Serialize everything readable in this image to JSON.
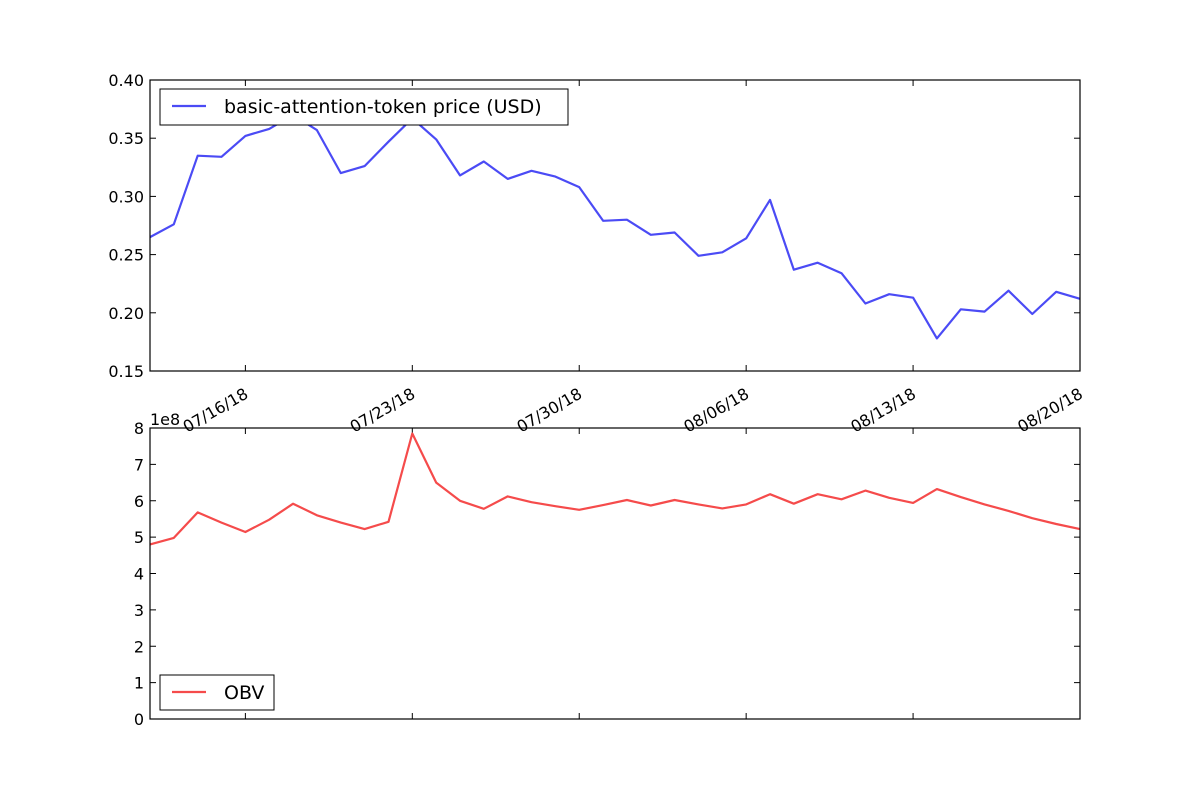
{
  "chart_data": [
    {
      "type": "line",
      "x": [
        "07/12/18",
        "07/13/18",
        "07/14/18",
        "07/15/18",
        "07/16/18",
        "07/17/18",
        "07/18/18",
        "07/19/18",
        "07/20/18",
        "07/21/18",
        "07/22/18",
        "07/23/18",
        "07/24/18",
        "07/25/18",
        "07/26/18",
        "07/27/18",
        "07/28/18",
        "07/29/18",
        "07/30/18",
        "07/31/18",
        "08/01/18",
        "08/02/18",
        "08/03/18",
        "08/04/18",
        "08/05/18",
        "08/06/18",
        "08/07/18",
        "08/08/18",
        "08/09/18",
        "08/10/18",
        "08/11/18",
        "08/12/18",
        "08/13/18",
        "08/14/18",
        "08/15/18",
        "08/16/18",
        "08/17/18",
        "08/18/18",
        "08/19/18",
        "08/20/18"
      ],
      "xticks": [
        "07/16/18",
        "07/23/18",
        "07/30/18",
        "08/06/18",
        "08/13/18",
        "08/20/18"
      ],
      "series": [
        {
          "name": "basic-attention-token price (USD)",
          "values": [
            0.265,
            0.276,
            0.335,
            0.334,
            0.352,
            0.358,
            0.37,
            0.357,
            0.32,
            0.326,
            0.347,
            0.367,
            0.349,
            0.318,
            0.33,
            0.315,
            0.322,
            0.317,
            0.308,
            0.279,
            0.28,
            0.267,
            0.269,
            0.249,
            0.252,
            0.264,
            0.297,
            0.237,
            0.243,
            0.234,
            0.208,
            0.216,
            0.213,
            0.178,
            0.203,
            0.201,
            0.219,
            0.199,
            0.218,
            0.212
          ]
        }
      ],
      "ylim": [
        0.15,
        0.4
      ],
      "yticks": [
        "0.15",
        "0.20",
        "0.25",
        "0.30",
        "0.35",
        "0.40"
      ],
      "legend": "top-left",
      "grid": false,
      "color": "#4b4bf5"
    },
    {
      "type": "line",
      "x": [
        "07/12/18",
        "07/13/18",
        "07/14/18",
        "07/15/18",
        "07/16/18",
        "07/17/18",
        "07/18/18",
        "07/19/18",
        "07/20/18",
        "07/21/18",
        "07/22/18",
        "07/23/18",
        "07/24/18",
        "07/25/18",
        "07/26/18",
        "07/27/18",
        "07/28/18",
        "07/29/18",
        "07/30/18",
        "07/31/18",
        "08/01/18",
        "08/02/18",
        "08/03/18",
        "08/04/18",
        "08/05/18",
        "08/06/18",
        "08/07/18",
        "08/08/18",
        "08/09/18",
        "08/10/18",
        "08/11/18",
        "08/12/18",
        "08/13/18",
        "08/14/18",
        "08/15/18",
        "08/16/18",
        "08/17/18",
        "08/18/18",
        "08/19/18",
        "08/20/18"
      ],
      "series": [
        {
          "name": "OBV",
          "values": [
            4.8,
            4.98,
            5.68,
            5.4,
            5.14,
            5.48,
            5.92,
            5.6,
            5.4,
            5.22,
            5.42,
            7.85,
            6.5,
            6.0,
            5.78,
            6.12,
            5.96,
            5.85,
            5.75,
            5.88,
            6.02,
            5.87,
            6.02,
            5.9,
            5.79,
            5.9,
            6.18,
            5.92,
            6.18,
            6.04,
            6.28,
            6.08,
            5.94,
            6.32,
            6.1,
            5.9,
            5.72,
            5.52,
            5.36,
            5.22
          ]
        }
      ],
      "ylim": [
        0,
        8
      ],
      "yticks": [
        "0",
        "1",
        "2",
        "3",
        "4",
        "5",
        "6",
        "7",
        "8"
      ],
      "y_multiplier": "1e8",
      "legend": "bottom-left",
      "grid": false,
      "color": "#f54b4b"
    }
  ]
}
